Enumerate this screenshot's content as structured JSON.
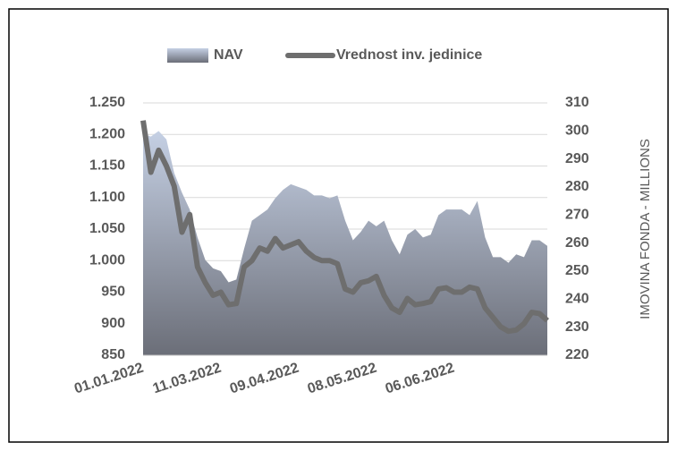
{
  "chart_data": {
    "type": "area-line",
    "series": [
      {
        "name": "NAV",
        "type": "area",
        "axis": "y2",
        "color": "#c5d0e4",
        "values": [
          299,
          298,
          300,
          297,
          285,
          278,
          272,
          262,
          254,
          251,
          250,
          246,
          247,
          258,
          268,
          270,
          272,
          276,
          279,
          281,
          280,
          279,
          277,
          277,
          276,
          277,
          268,
          261,
          264,
          268,
          266,
          268,
          261,
          256,
          263,
          265,
          262,
          263,
          270,
          272,
          272,
          272,
          270,
          275,
          262,
          255,
          255,
          253,
          256,
          255,
          261,
          261,
          259
        ]
      },
      {
        "name": "Vrednost inv. jedinice",
        "type": "line",
        "axis": "y",
        "color": "#6e6e6e",
        "values": [
          1222,
          1140,
          1175,
          1150,
          1118,
          1045,
          1073,
          990,
          965,
          945,
          950,
          930,
          932,
          990,
          1000,
          1020,
          1015,
          1035,
          1020,
          1025,
          1030,
          1015,
          1005,
          1000,
          1000,
          995,
          955,
          950,
          965,
          968,
          975,
          945,
          925,
          918,
          940,
          930,
          932,
          935,
          955,
          957,
          950,
          950,
          958,
          955,
          925,
          910,
          895,
          888,
          890,
          900,
          918,
          916,
          905
        ]
      }
    ],
    "categories": [
      "01.01.2022",
      null,
      null,
      null,
      null,
      null,
      null,
      null,
      null,
      null,
      "11.03.2022",
      null,
      null,
      null,
      null,
      null,
      null,
      null,
      null,
      null,
      "09.04.2022",
      null,
      null,
      null,
      null,
      null,
      null,
      null,
      null,
      null,
      "08.05.2022",
      null,
      null,
      null,
      null,
      null,
      null,
      null,
      null,
      null,
      "06.06.2022",
      null,
      null,
      null,
      null,
      null,
      null,
      null,
      null,
      null,
      null,
      null,
      null
    ],
    "ylim": [
      850,
      1250
    ],
    "yticks": [
      850,
      900,
      950,
      {
        "value": 1000,
        "label": "1.000"
      },
      {
        "value": 1050,
        "label": "1.050"
      },
      {
        "value": 1100,
        "label": "1.100"
      },
      {
        "value": 1150,
        "label": "1.150"
      },
      {
        "value": 1200,
        "label": "1.200"
      },
      {
        "value": 1250,
        "label": "1.250"
      }
    ],
    "y2lim": [
      220,
      310
    ],
    "y2ticks": [
      220,
      230,
      240,
      250,
      260,
      270,
      280,
      290,
      300,
      310
    ],
    "y2label": "IMOVINA FONDA - MILLIONS",
    "grid": true,
    "legend": "top"
  }
}
